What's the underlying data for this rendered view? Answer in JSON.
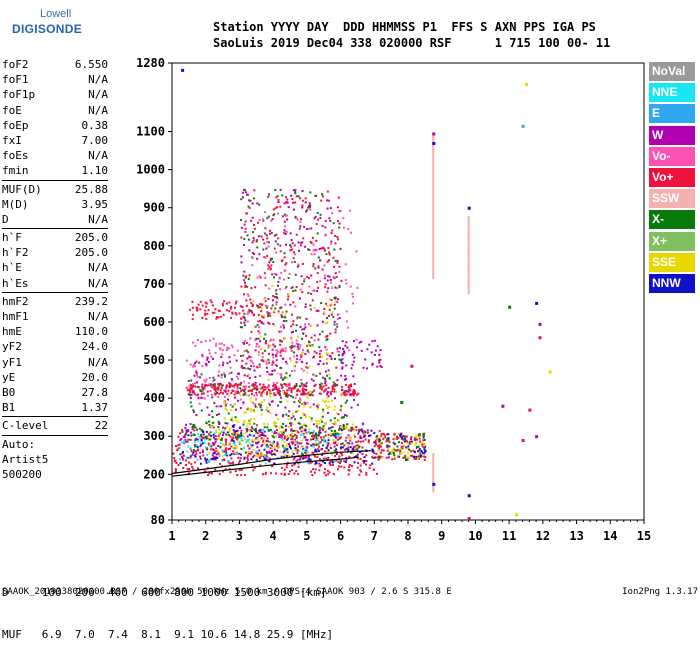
{
  "logo": {
    "line1": "Lowell",
    "line2": "DIGISONDE"
  },
  "header": {
    "line1": "Station YYYY DAY  DDD HHMMSS P1  FFS S AXN PPS IGA PS",
    "line2": "SaoLuis 2019 Dec04 338 020000 RSF      1 715 100 00- 11"
  },
  "params": [
    {
      "k": "foF2",
      "v": "6.550"
    },
    {
      "k": "foF1",
      "v": "N/A"
    },
    {
      "k": "foF1p",
      "v": "N/A"
    },
    {
      "k": "foE",
      "v": "N/A"
    },
    {
      "k": "foEp",
      "v": "0.38"
    },
    {
      "k": "fxI",
      "v": "7.00"
    },
    {
      "k": "foEs",
      "v": "N/A"
    },
    {
      "k": "fmin",
      "v": "1.10"
    },
    {
      "sep": true
    },
    {
      "k": "MUF(D)",
      "v": "25.88"
    },
    {
      "k": "M(D)",
      "v": "3.95"
    },
    {
      "k": "D",
      "v": "N/A"
    },
    {
      "sep": true
    },
    {
      "k": "h`F",
      "v": "205.0"
    },
    {
      "k": "h`F2",
      "v": "205.0"
    },
    {
      "k": "h`E",
      "v": "N/A"
    },
    {
      "k": "h`Es",
      "v": "N/A"
    },
    {
      "sep": true
    },
    {
      "k": "hmF2",
      "v": "239.2"
    },
    {
      "k": "hmF1",
      "v": "N/A"
    },
    {
      "k": "hmE",
      "v": "110.0"
    },
    {
      "k": "yF2",
      "v": "24.0"
    },
    {
      "k": "yF1",
      "v": "N/A"
    },
    {
      "k": "yE",
      "v": "20.0"
    },
    {
      "k": "B0",
      "v": "27.8"
    },
    {
      "k": "B1",
      "v": "1.37"
    },
    {
      "sep": true
    },
    {
      "k": "C-level",
      "v": "22"
    },
    {
      "sep": true
    }
  ],
  "auto": {
    "line1": "Auto:",
    "line2": "Artist5",
    "line3": "500200"
  },
  "legend": [
    {
      "label": "NoVal",
      "color": "#9a9a9a"
    },
    {
      "label": "NNE",
      "color": "#19e6f0"
    },
    {
      "label": "E",
      "color": "#30a8f0"
    },
    {
      "label": "W",
      "color": "#b000b0"
    },
    {
      "label": "Vo-",
      "color": "#ff50b4"
    },
    {
      "label": "Vo+",
      "color": "#f0103c"
    },
    {
      "label": "SSW",
      "color": "#f5b0b0"
    },
    {
      "label": "X-",
      "color": "#0a7a0a"
    },
    {
      "label": "X+",
      "color": "#80c060"
    },
    {
      "label": "SSE",
      "color": "#e6d800"
    },
    {
      "label": "NNW",
      "color": "#1010c8"
    }
  ],
  "footer": {
    "line1": "D     100  200  400  600  800 1000 1500 3000 [km]",
    "line2": "MUF   6.9  7.0  7.4  8.1  9.1 10.6 14.8 25.9 [MHz]"
  },
  "bottom": {
    "left": "SAAOK_2019338020000.RSF / 280fx256h 50 kHz 5.0 km / DPS-4 SAAOK 903 / 2.6 S 315.8 E",
    "right": "Ion2Png 1.3.17"
  },
  "chart_data": {
    "type": "scatter",
    "title": "",
    "xlabel": "",
    "ylabel": "",
    "xlim": [
      1,
      15
    ],
    "ylim": [
      80,
      1280
    ],
    "x_ticks": [
      1,
      2,
      3,
      4,
      5,
      6,
      7,
      8,
      9,
      10,
      11,
      12,
      13,
      14,
      15
    ],
    "y_ticks": [
      80,
      200,
      300,
      400,
      500,
      600,
      700,
      800,
      900,
      1000,
      1100,
      1280
    ],
    "traces": [
      {
        "name": "ordinary trace",
        "color": "#000000",
        "x": [
          1.0,
          2.0,
          3.0,
          4.0,
          5.0,
          6.0,
          6.55
        ],
        "y": [
          195,
          205,
          215,
          225,
          233,
          240,
          245
        ]
      },
      {
        "name": "extraordinary trace",
        "color": "#000000",
        "x": [
          1.0,
          2.0,
          3.0,
          4.0,
          5.0,
          6.0,
          6.9
        ],
        "y": [
          202,
          214,
          226,
          240,
          250,
          258,
          262
        ]
      }
    ],
    "clusters": [
      {
        "x": [
          1.0,
          7.2
        ],
        "y": [
          200,
          320
        ],
        "color": "#f0103c",
        "count": 420
      },
      {
        "x": [
          1.2,
          6.8
        ],
        "y": [
          240,
          340
        ],
        "color": "#b000b0",
        "count": 220
      },
      {
        "x": [
          1.2,
          7.0
        ],
        "y": [
          230,
          330
        ],
        "color": "#1010c8",
        "count": 160
      },
      {
        "x": [
          2.0,
          6.5
        ],
        "y": [
          250,
          340
        ],
        "color": "#e6d800",
        "count": 160
      },
      {
        "x": [
          1.2,
          6.0
        ],
        "y": [
          230,
          320
        ],
        "color": "#19e6f0",
        "count": 90
      },
      {
        "x": [
          1.2,
          6.8
        ],
        "y": [
          250,
          330
        ],
        "color": "#0a7a0a",
        "count": 60
      },
      {
        "x": [
          7.0,
          8.5
        ],
        "y": [
          240,
          310
        ],
        "color": "#f0103c",
        "count": 90
      },
      {
        "x": [
          7.0,
          8.5
        ],
        "y": [
          240,
          310
        ],
        "color": "#1010c8",
        "count": 40
      },
      {
        "x": [
          7.0,
          8.5
        ],
        "y": [
          240,
          310
        ],
        "color": "#e6d800",
        "count": 40
      },
      {
        "x": [
          7.0,
          8.5
        ],
        "y": [
          240,
          310
        ],
        "color": "#0a7a0a",
        "count": 30
      },
      {
        "x": [
          1.4,
          6.5
        ],
        "y": [
          410,
          440
        ],
        "color": "#f0103c",
        "count": 260
      },
      {
        "x": [
          1.4,
          5.0
        ],
        "y": [
          380,
          560
        ],
        "color": "#ff50b4",
        "count": 180
      },
      {
        "x": [
          1.4,
          6.5
        ],
        "y": [
          350,
          520
        ],
        "color": "#b000b0",
        "count": 160
      },
      {
        "x": [
          1.5,
          6.2
        ],
        "y": [
          300,
          470
        ],
        "color": "#0a7a0a",
        "count": 140
      },
      {
        "x": [
          2.5,
          6.0
        ],
        "y": [
          330,
          420
        ],
        "color": "#e6d800",
        "count": 90
      },
      {
        "x": [
          1.5,
          4.0
        ],
        "y": [
          610,
          660
        ],
        "color": "#f0103c",
        "count": 80
      },
      {
        "x": [
          3.0,
          6.0
        ],
        "y": [
          480,
          950
        ],
        "color": "#f0103c",
        "count": 260
      },
      {
        "x": [
          3.0,
          6.0
        ],
        "y": [
          480,
          950
        ],
        "color": "#b000b0",
        "count": 160
      },
      {
        "x": [
          3.0,
          6.0
        ],
        "y": [
          480,
          950
        ],
        "color": "#0a7a0a",
        "count": 130
      },
      {
        "x": [
          3.2,
          6.5
        ],
        "y": [
          500,
          900
        ],
        "color": "#ff50b4",
        "count": 120
      },
      {
        "x": [
          3.0,
          5.8
        ],
        "y": [
          400,
          700
        ],
        "color": "#e6d800",
        "count": 50
      },
      {
        "x": [
          6.0,
          7.2
        ],
        "y": [
          480,
          560
        ],
        "color": "#b000b0",
        "count": 40
      }
    ],
    "columns": [
      {
        "x": 8.75,
        "y": [
          720,
          1100
        ],
        "color": "#f5b0b0"
      },
      {
        "x": 8.75,
        "y": [
          160,
          260
        ],
        "color": "#f5b0b0"
      },
      {
        "x": 9.8,
        "y": [
          680,
          880
        ],
        "color": "#f5b0b0"
      }
    ],
    "points": [
      {
        "x": 1.3,
        "y": 1262,
        "color": "#1010c8"
      },
      {
        "x": 11.5,
        "y": 1225,
        "color": "#e6d800"
      },
      {
        "x": 11.4,
        "y": 1115,
        "color": "#30a8f0"
      },
      {
        "x": 8.75,
        "y": 1095,
        "color": "#b000b0"
      },
      {
        "x": 8.75,
        "y": 1070,
        "color": "#1010c8"
      },
      {
        "x": 9.8,
        "y": 900,
        "color": "#1010c8"
      },
      {
        "x": 11.8,
        "y": 650,
        "color": "#1010c8"
      },
      {
        "x": 11.0,
        "y": 640,
        "color": "#0a7a0a"
      },
      {
        "x": 11.9,
        "y": 595,
        "color": "#b000b0"
      },
      {
        "x": 11.9,
        "y": 560,
        "color": "#f0103c"
      },
      {
        "x": 12.2,
        "y": 470,
        "color": "#e6d800"
      },
      {
        "x": 10.8,
        "y": 380,
        "color": "#b000b0"
      },
      {
        "x": 11.6,
        "y": 370,
        "color": "#f0103c"
      },
      {
        "x": 11.8,
        "y": 300,
        "color": "#b000b0"
      },
      {
        "x": 11.4,
        "y": 290,
        "color": "#f0103c"
      },
      {
        "x": 9.8,
        "y": 145,
        "color": "#1010c8"
      },
      {
        "x": 9.8,
        "y": 85,
        "color": "#f0103c"
      },
      {
        "x": 8.75,
        "y": 175,
        "color": "#1010c8"
      },
      {
        "x": 11.2,
        "y": 95,
        "color": "#e6d800"
      },
      {
        "x": 8.1,
        "y": 485,
        "color": "#f0103c"
      },
      {
        "x": 7.8,
        "y": 390,
        "color": "#0a7a0a"
      }
    ]
  }
}
